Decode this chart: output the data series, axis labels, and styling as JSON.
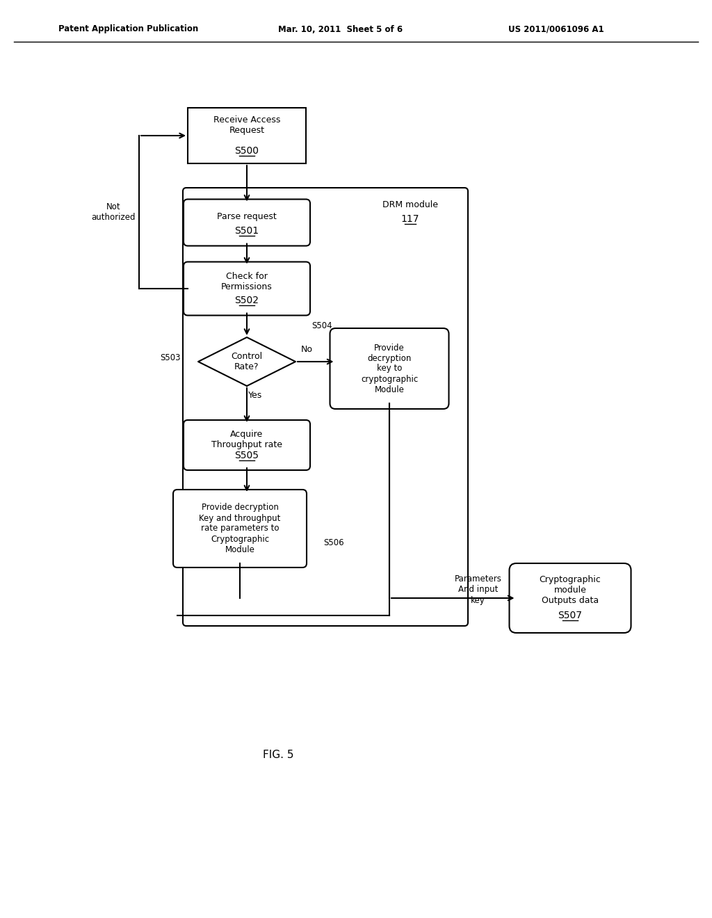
{
  "title_left": "Patent Application Publication",
  "title_mid": "Mar. 10, 2011  Sheet 5 of 6",
  "title_right": "US 2011/0061096 A1",
  "fig_label": "FIG. 5",
  "background": "#ffffff"
}
